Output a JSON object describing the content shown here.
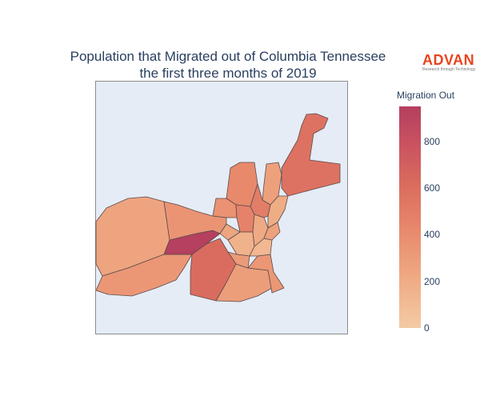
{
  "chart": {
    "title_line1": "Population that Migrated out of Columbia Tennessee",
    "title_line2": "the first three months of 2019"
  },
  "logo": {
    "name": "ADVAN",
    "tagline": "Research through Technology"
  },
  "colorbar": {
    "title": "Migration Out",
    "ticks": [
      "0",
      "200",
      "400",
      "600",
      "800"
    ],
    "range": [
      0,
      950
    ],
    "colors": [
      "#f3cba5",
      "#efab84",
      "#e8896c",
      "#d96a5e",
      "#c85160",
      "#b43f5f"
    ]
  },
  "chart_data": {
    "type": "choropleth",
    "title": "Population that Migrated out of Columbia Tennessee the first three months of 2019",
    "colorbar_title": "Migration Out",
    "colorbar_range": [
      0,
      950
    ],
    "regions": [
      {
        "id": "west",
        "value": 230
      },
      {
        "id": "southwest",
        "value": 300
      },
      {
        "id": "central-highlight",
        "value": 940
      },
      {
        "id": "west-central",
        "value": 320
      },
      {
        "id": "north-central",
        "value": 380
      },
      {
        "id": "north-strip",
        "value": 250
      },
      {
        "id": "northeast",
        "value": 520
      },
      {
        "id": "south-central",
        "value": 560
      },
      {
        "id": "south",
        "value": 260
      },
      {
        "id": "southeast",
        "value": 300
      },
      {
        "id": "center-a",
        "value": 330
      },
      {
        "id": "center-b",
        "value": 420
      },
      {
        "id": "center-c",
        "value": 150
      },
      {
        "id": "center-d",
        "value": 220
      },
      {
        "id": "center-e",
        "value": 280
      },
      {
        "id": "center-f",
        "value": 110
      },
      {
        "id": "center-g",
        "value": 200
      },
      {
        "id": "center-h",
        "value": 450
      },
      {
        "id": "east-inner",
        "value": 180
      },
      {
        "id": "east-small",
        "value": 240
      }
    ]
  }
}
